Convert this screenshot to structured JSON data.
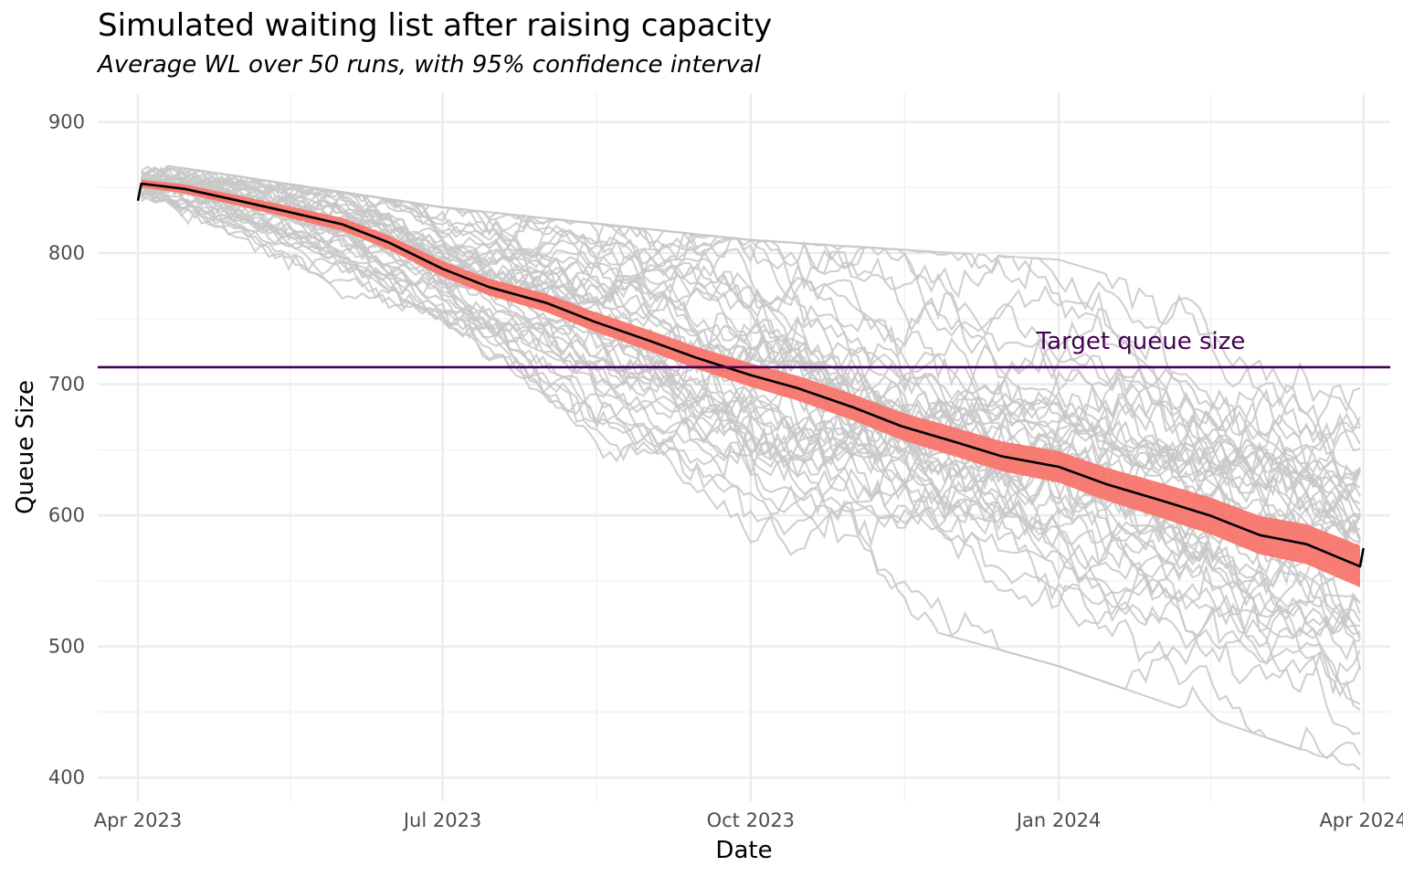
{
  "chart_data": {
    "type": "line",
    "title": "Simulated waiting list after raising capacity",
    "subtitle": "Average WL over 50 runs, with 95% confidence interval",
    "xlabel": "Date",
    "ylabel": "Queue Size",
    "x_range": [
      "2023-03-20",
      "2024-04-09"
    ],
    "ylim": [
      382,
      922
    ],
    "x_ticks": [
      {
        "date": "2023-04-01",
        "label": "Apr 2023"
      },
      {
        "date": "2023-07-01",
        "label": "Jul 2023"
      },
      {
        "date": "2023-10-01",
        "label": "Oct 2023"
      },
      {
        "date": "2024-01-01",
        "label": "Jan 2024"
      },
      {
        "date": "2024-04-01",
        "label": "Apr 2024"
      }
    ],
    "y_ticks": [
      400,
      500,
      600,
      700,
      800,
      900
    ],
    "grid": true,
    "num_runs": 50,
    "runs_color": "#c8c8c8",
    "ribbon_color": "#f8766d",
    "mean_color": "#000000",
    "target_color": "#440154",
    "target_queue_size": 713,
    "target_label": "Target queue size",
    "mean_series": {
      "name": "Average WL",
      "points": [
        {
          "date": "2023-04-01",
          "y": 840
        },
        {
          "date": "2023-04-02",
          "y": 853
        },
        {
          "date": "2023-04-15",
          "y": 849
        },
        {
          "date": "2023-05-01",
          "y": 840
        },
        {
          "date": "2023-05-15",
          "y": 832
        },
        {
          "date": "2023-06-01",
          "y": 822
        },
        {
          "date": "2023-06-15",
          "y": 808
        },
        {
          "date": "2023-07-01",
          "y": 788
        },
        {
          "date": "2023-07-15",
          "y": 774
        },
        {
          "date": "2023-08-01",
          "y": 762
        },
        {
          "date": "2023-08-15",
          "y": 748
        },
        {
          "date": "2023-09-01",
          "y": 733
        },
        {
          "date": "2023-09-15",
          "y": 720
        },
        {
          "date": "2023-10-01",
          "y": 707
        },
        {
          "date": "2023-10-15",
          "y": 697
        },
        {
          "date": "2023-11-01",
          "y": 682
        },
        {
          "date": "2023-11-15",
          "y": 668
        },
        {
          "date": "2023-12-01",
          "y": 656
        },
        {
          "date": "2023-12-15",
          "y": 645
        },
        {
          "date": "2024-01-01",
          "y": 637
        },
        {
          "date": "2024-01-15",
          "y": 624
        },
        {
          "date": "2024-02-01",
          "y": 611
        },
        {
          "date": "2024-02-15",
          "y": 600
        },
        {
          "date": "2024-03-01",
          "y": 585
        },
        {
          "date": "2024-03-15",
          "y": 578
        },
        {
          "date": "2024-03-31",
          "y": 561
        },
        {
          "date": "2024-04-01",
          "y": 575
        }
      ]
    },
    "ci_halfwidth": [
      {
        "date": "2023-04-02",
        "value": 3
      },
      {
        "date": "2023-07-01",
        "value": 6
      },
      {
        "date": "2023-10-01",
        "value": 9
      },
      {
        "date": "2024-01-01",
        "value": 12
      },
      {
        "date": "2024-04-01",
        "value": 16
      }
    ],
    "runs_envelope": [
      {
        "date": "2023-04-01",
        "min": 840,
        "max": 870
      },
      {
        "date": "2023-07-01",
        "min": 720,
        "max": 835
      },
      {
        "date": "2023-10-01",
        "min": 550,
        "max": 810
      },
      {
        "date": "2024-01-01",
        "min": 485,
        "max": 795
      },
      {
        "date": "2024-04-01",
        "min": 405,
        "max": 725
      }
    ]
  }
}
